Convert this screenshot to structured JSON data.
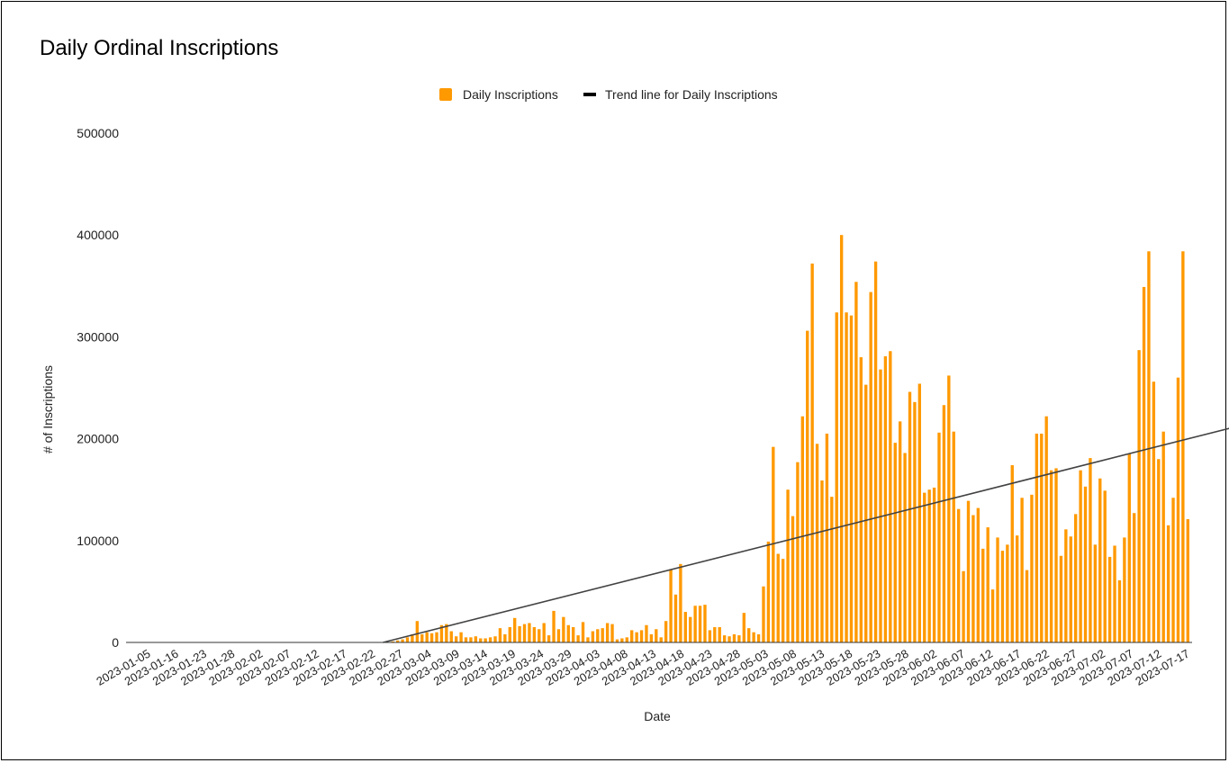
{
  "chart_data": {
    "type": "bar",
    "title": "Daily Ordinal Inscriptions",
    "xlabel": "Date",
    "ylabel": "# of Inscriptions",
    "ylim": [
      0,
      500000
    ],
    "y_ticks": [
      "0",
      "100000",
      "200000",
      "300000",
      "400000",
      "500000"
    ],
    "x_tick_labels": [
      "2023-01-05",
      "2023-01-16",
      "2023-01-23",
      "2023-01-28",
      "2023-02-02",
      "2023-02-07",
      "2023-02-12",
      "2023-02-17",
      "2023-02-22",
      "2023-02-27",
      "2023-03-04",
      "2023-03-09",
      "2023-03-14",
      "2023-03-19",
      "2023-03-24",
      "2023-03-29",
      "2023-04-03",
      "2023-04-08",
      "2023-04-13",
      "2023-04-18",
      "2023-04-23",
      "2023-04-28",
      "2023-05-03",
      "2023-05-08",
      "2023-05-13",
      "2023-05-18",
      "2023-05-23",
      "2023-05-28",
      "2023-06-02",
      "2023-06-07",
      "2023-06-12",
      "2023-06-17",
      "2023-06-22",
      "2023-06-27",
      "2023-07-02",
      "2023-07-07",
      "2023-07-12",
      "2023-07-17"
    ],
    "legend_position": "top",
    "grid": false,
    "series": [
      {
        "name": "Daily Inscriptions",
        "color": "#ff9900",
        "values": [
          0,
          0,
          0,
          0,
          0,
          0,
          0,
          0,
          0,
          0,
          0,
          0,
          0,
          0,
          0,
          0,
          0,
          0,
          0,
          0,
          0,
          0,
          0,
          0,
          0,
          0,
          0,
          0,
          0,
          0,
          0,
          0,
          0,
          0,
          0,
          0,
          0,
          0,
          0,
          0,
          0,
          0,
          0,
          0,
          0,
          0,
          0,
          0,
          0,
          0,
          0,
          0,
          0,
          0,
          1000,
          2000,
          3000,
          5000,
          8000,
          21000,
          8000,
          10000,
          9000,
          10000,
          17000,
          18000,
          11000,
          6000,
          10000,
          5000,
          5000,
          6000,
          4000,
          4000,
          5000,
          6000,
          14000,
          8000,
          15000,
          24000,
          16000,
          18000,
          19000,
          15000,
          13000,
          19000,
          7000,
          31000,
          13000,
          25000,
          17000,
          15000,
          7000,
          20000,
          5000,
          11000,
          13000,
          14000,
          19000,
          18000,
          3000,
          4000,
          5000,
          12000,
          10000,
          12000,
          17000,
          8000,
          13000,
          5000,
          21000,
          72000,
          47000,
          77000,
          30000,
          25000,
          36000,
          36000,
          37000,
          12000,
          15000,
          15000,
          7000,
          6000,
          8000,
          7000,
          29000,
          14000,
          10000,
          8000,
          55000,
          99000,
          192000,
          87000,
          82000,
          150000,
          124000,
          177000,
          222000,
          306000,
          372000,
          195000,
          159000,
          205000,
          143000,
          324000,
          400000,
          324000,
          321000,
          354000,
          280000,
          253000,
          344000,
          374000,
          268000,
          281000,
          286000,
          196000,
          217000,
          186000,
          246000,
          236000,
          254000,
          147000,
          150000,
          152000,
          206000,
          233000,
          262000,
          207000,
          131000,
          70000,
          139000,
          125000,
          132000,
          92000,
          113000,
          52000,
          103000,
          90000,
          96000,
          174000,
          105000,
          142000,
          71000,
          145000,
          205000,
          205000,
          222000,
          169000,
          171000,
          85000,
          111000,
          104000,
          126000,
          169000,
          153000,
          181000,
          96000,
          161000,
          149000,
          84000,
          95000,
          61000,
          103000,
          185000,
          127000,
          287000,
          349000,
          384000,
          256000,
          180000,
          207000,
          115000,
          142000,
          260000,
          384000,
          121000
        ]
      }
    ],
    "trend_line": {
      "name": "Trend line for Daily Inscriptions",
      "color": "#424242",
      "start": {
        "index": 52,
        "value": 0
      },
      "end": {
        "index": 236,
        "value": 224000
      }
    }
  }
}
